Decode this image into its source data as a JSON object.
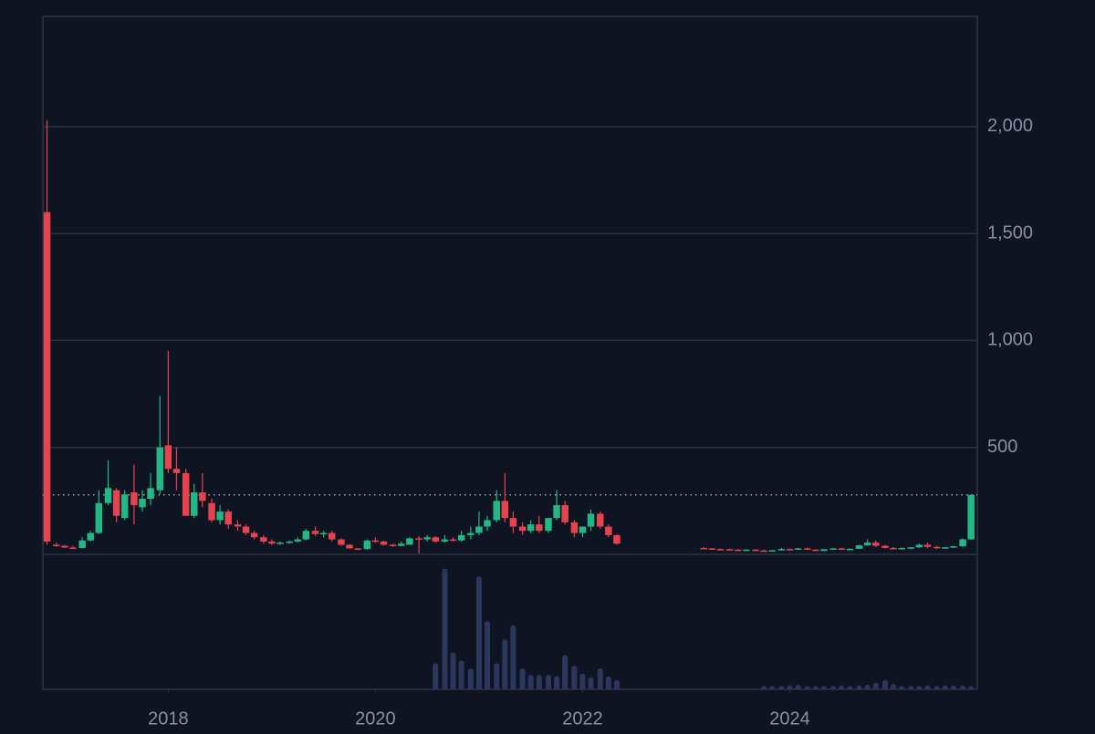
{
  "chart_data": {
    "type": "candlestick",
    "x": [
      2016.83,
      2016.92,
      2017.0,
      2017.08,
      2017.17,
      2017.25,
      2017.33,
      2017.42,
      2017.5,
      2017.58,
      2017.67,
      2017.75,
      2017.83,
      2017.92,
      2018.0,
      2018.08,
      2018.17,
      2018.25,
      2018.33,
      2018.42,
      2018.5,
      2018.58,
      2018.67,
      2018.75,
      2018.83,
      2018.92,
      2019.0,
      2019.08,
      2019.17,
      2019.25,
      2019.33,
      2019.42,
      2019.5,
      2019.58,
      2019.67,
      2019.75,
      2019.83,
      2019.92,
      2020.0,
      2020.08,
      2020.17,
      2020.25,
      2020.33,
      2020.42,
      2020.5,
      2020.58,
      2020.67,
      2020.75,
      2020.83,
      2020.92,
      2021.0,
      2021.08,
      2021.17,
      2021.25,
      2021.33,
      2021.42,
      2021.5,
      2021.58,
      2021.67,
      2021.75,
      2021.83,
      2021.92,
      2022.0,
      2022.08,
      2022.17,
      2022.25,
      2022.33,
      2023.17,
      2023.25,
      2023.33,
      2023.42,
      2023.5,
      2023.58,
      2023.67,
      2023.75,
      2023.83,
      2023.92,
      2024.0,
      2024.08,
      2024.17,
      2024.25,
      2024.33,
      2024.42,
      2024.5,
      2024.58,
      2024.67,
      2024.75,
      2024.83,
      2024.92,
      2025.0,
      2025.08,
      2025.17,
      2025.25,
      2025.33,
      2025.42,
      2025.5,
      2025.58,
      2025.67,
      2025.75
    ],
    "open": [
      1600,
      45,
      40,
      32,
      30,
      65,
      100,
      240,
      300,
      170,
      290,
      220,
      260,
      300,
      510,
      400,
      380,
      180,
      290,
      240,
      160,
      200,
      140,
      130,
      100,
      80,
      60,
      50,
      55,
      60,
      70,
      110,
      95,
      100,
      70,
      45,
      28,
      25,
      65,
      60,
      45,
      40,
      45,
      75,
      70,
      80,
      60,
      70,
      65,
      90,
      100,
      130,
      160,
      250,
      170,
      130,
      110,
      140,
      110,
      170,
      230,
      150,
      100,
      130,
      190,
      130,
      90,
      30,
      28,
      25,
      24,
      22,
      20,
      22,
      18,
      16,
      19,
      25,
      22,
      28,
      22,
      16,
      24,
      28,
      22,
      26,
      42,
      55,
      40,
      30,
      28,
      30,
      33,
      45,
      35,
      30,
      33,
      38,
      70
    ],
    "high": [
      2030,
      55,
      45,
      40,
      80,
      110,
      300,
      440,
      310,
      300,
      420,
      300,
      380,
      740,
      950,
      500,
      400,
      330,
      380,
      260,
      230,
      210,
      160,
      140,
      110,
      90,
      70,
      60,
      65,
      80,
      120,
      130,
      110,
      110,
      75,
      48,
      30,
      70,
      80,
      65,
      50,
      60,
      80,
      85,
      90,
      85,
      90,
      80,
      110,
      130,
      200,
      180,
      300,
      380,
      200,
      150,
      160,
      180,
      170,
      300,
      250,
      160,
      130,
      210,
      200,
      140,
      95,
      35,
      30,
      28,
      27,
      25,
      24,
      25,
      22,
      20,
      30,
      28,
      30,
      32,
      24,
      25,
      30,
      30,
      28,
      45,
      70,
      65,
      45,
      35,
      32,
      35,
      50,
      55,
      40,
      35,
      40,
      75,
      280
    ],
    "low": [
      45,
      35,
      30,
      28,
      28,
      60,
      95,
      230,
      150,
      160,
      140,
      200,
      230,
      280,
      380,
      300,
      180,
      170,
      220,
      150,
      140,
      120,
      110,
      90,
      70,
      50,
      45,
      45,
      50,
      55,
      65,
      85,
      80,
      60,
      40,
      25,
      20,
      22,
      55,
      40,
      35,
      38,
      45,
      5,
      60,
      55,
      55,
      60,
      60,
      70,
      90,
      110,
      150,
      150,
      100,
      90,
      100,
      100,
      100,
      160,
      140,
      80,
      80,
      110,
      120,
      80,
      45,
      25,
      22,
      20,
      20,
      18,
      17,
      15,
      14,
      14,
      17,
      20,
      20,
      20,
      15,
      15,
      22,
      20,
      20,
      25,
      40,
      35,
      28,
      25,
      22,
      25,
      30,
      30,
      25,
      28,
      30,
      35,
      68
    ],
    "close": [
      60,
      40,
      32,
      30,
      65,
      100,
      240,
      310,
      180,
      280,
      230,
      260,
      310,
      500,
      400,
      380,
      180,
      290,
      250,
      160,
      200,
      140,
      130,
      100,
      80,
      60,
      50,
      55,
      60,
      70,
      110,
      95,
      100,
      70,
      45,
      28,
      25,
      65,
      60,
      45,
      40,
      50,
      75,
      70,
      80,
      60,
      70,
      65,
      90,
      100,
      130,
      160,
      250,
      170,
      130,
      110,
      140,
      110,
      170,
      230,
      150,
      100,
      130,
      190,
      130,
      90,
      50,
      28,
      25,
      24,
      22,
      20,
      22,
      18,
      16,
      19,
      25,
      22,
      28,
      22,
      16,
      24,
      28,
      22,
      26,
      42,
      55,
      40,
      30,
      28,
      30,
      33,
      45,
      35,
      30,
      33,
      38,
      70,
      278
    ],
    "volume": [
      null,
      null,
      null,
      null,
      null,
      null,
      null,
      null,
      null,
      null,
      null,
      null,
      null,
      null,
      null,
      null,
      null,
      null,
      null,
      null,
      null,
      null,
      null,
      null,
      null,
      null,
      null,
      null,
      null,
      null,
      null,
      null,
      null,
      null,
      null,
      null,
      null,
      null,
      null,
      null,
      null,
      null,
      null,
      null,
      null,
      20,
      92,
      28,
      22,
      16,
      86,
      52,
      20,
      38,
      49,
      16,
      11,
      11,
      11,
      10,
      26,
      18,
      12,
      9,
      16,
      10,
      7,
      null,
      null,
      null,
      null,
      null,
      null,
      null,
      1,
      1,
      1,
      2,
      3,
      1,
      1,
      1,
      1,
      2,
      1,
      2,
      3,
      5,
      7,
      4,
      1,
      1,
      1,
      2,
      1,
      2,
      2,
      2,
      1
    ],
    "up_color": "#22b784",
    "down_color": "#e5434e",
    "volume_color": "#2b375c",
    "ylim": [
      0,
      2515
    ],
    "yticks": [
      {
        "value": 500,
        "label": "500"
      },
      {
        "value": 1000,
        "label": "1,000"
      },
      {
        "value": 1500,
        "label": "1,500"
      },
      {
        "value": 2000,
        "label": "2,000"
      }
    ],
    "xlim": [
      2016.79,
      2025.81
    ],
    "xticks": [
      2018,
      2020,
      2022,
      2024
    ],
    "volume_lim": [
      0,
      100
    ],
    "grid": true,
    "last_price_line": true
  }
}
